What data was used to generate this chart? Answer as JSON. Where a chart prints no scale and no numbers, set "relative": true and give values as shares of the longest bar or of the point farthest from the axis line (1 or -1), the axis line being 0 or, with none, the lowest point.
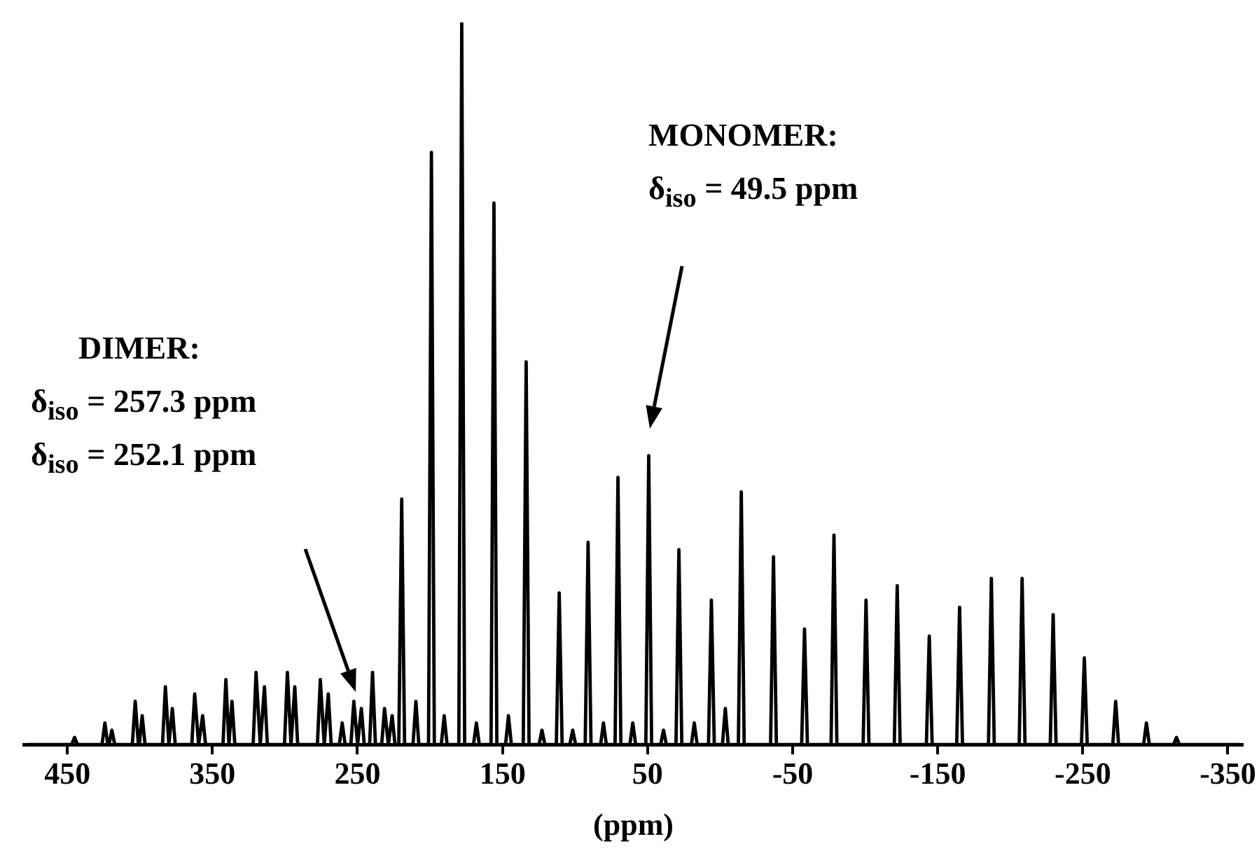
{
  "chart_data": {
    "type": "line",
    "relative": true,
    "xlabel": "(ppm)",
    "xlim": [
      480,
      -360
    ],
    "xticks": [
      450,
      350,
      250,
      150,
      50,
      -50,
      -150,
      -250,
      -350
    ],
    "grid": false,
    "legend": false,
    "marker": "none",
    "line_style": "solid",
    "tick_labels": "x",
    "annotations": [
      "MONOMER:",
      "δ$_{iso}$ = 49.5 ppm",
      "DIMER:",
      "δ$_{iso}$ = 257.3 ppm",
      "δ$_{iso}$ = 252.1 ppm"
    ],
    "series": [
      {
        "color": "#000000",
        "x": [
          478,
          447,
          445,
          443,
          426.1,
          424.1,
          422.1,
          421.3,
          419.3,
          417.3,
          405.2,
          403.2,
          401,
          400.4,
          398.4,
          396.4,
          384.4,
          382.4,
          380,
          379.6,
          377.6,
          375.6,
          364.2,
          362.2,
          359.5,
          356.7,
          354.7,
          342.7,
          340.7,
          338.6,
          336.5,
          334.5,
          321.9,
          319.9,
          317,
          314.1,
          312.1,
          300.3,
          298.3,
          295.8,
          293.2,
          291.2,
          277.6,
          275.6,
          272.9,
          270.1,
          268.1,
          262.5,
          260.5,
          258.5,
          254.5,
          252.5,
          249.9,
          247.3,
          245.3,
          241.6,
          239.6,
          237.6,
          233.3,
          231.3,
          228.7,
          226.1,
          224.1,
          221.5,
          219.5,
          217.5,
          211.7,
          209.7,
          207.7,
          201,
          199,
          197,
          192.2,
          190.2,
          188.2,
          180.1,
          178.1,
          176.1,
          170,
          168,
          166,
          157.9,
          155.9,
          153.9,
          147.9,
          145.9,
          143.9,
          135.7,
          133.7,
          131.7,
          124.8,
          122.8,
          120.8,
          112.9,
          110.9,
          108.9,
          103.6,
          101.6,
          99.6,
          93,
          91,
          89,
          82.4,
          80.4,
          78.4,
          72.4,
          70.4,
          68.4,
          62.2,
          60.2,
          58.2,
          51.2,
          49.2,
          47.2,
          41,
          39,
          37,
          30.4,
          28.4,
          26.4,
          19.8,
          17.8,
          15.8,
          8,
          6,
          4,
          -1.6,
          -3.6,
          -5.6,
          -12.6,
          -14.6,
          -16.6,
          -34.8,
          -36.8,
          -38.8,
          -56.2,
          -58.2,
          -60.2,
          -76.5,
          -78.5,
          -80.5,
          -98.6,
          -100.6,
          -102.6,
          -120.1,
          -122.1,
          -124.1,
          -142.2,
          -144.2,
          -146.2,
          -163.1,
          -165.1,
          -167.1,
          -185,
          -187,
          -189,
          -206.2,
          -208.2,
          -210.2,
          -227.6,
          -229.6,
          -231.6,
          -249.1,
          -251.1,
          -253.1,
          -270.7,
          -272.7,
          -274.7,
          -291.9,
          -293.9,
          -295.9,
          -312.6,
          -314.6,
          -316.6,
          -358
        ],
        "values": [
          0,
          0,
          0.01,
          0,
          0,
          0.03,
          0,
          0,
          0.02,
          0,
          0,
          0.06,
          0,
          0,
          0.04,
          0,
          0,
          0.08,
          0,
          0,
          0.05,
          0,
          0,
          0.07,
          0,
          0.04,
          0,
          0,
          0.09,
          0,
          0.06,
          0,
          0,
          0.1,
          0,
          0.08,
          0,
          0,
          0.1,
          0,
          0.08,
          0,
          0,
          0.09,
          0,
          0.07,
          0,
          0,
          0.03,
          0,
          0,
          0.06,
          0,
          0.05,
          0,
          0,
          0.1,
          0,
          0,
          0.05,
          0,
          0.04,
          0,
          0,
          0.34,
          0,
          0,
          0.06,
          0,
          0,
          0.82,
          0,
          0,
          0.04,
          0,
          0,
          1,
          0,
          0,
          0.03,
          0,
          0,
          0.75,
          0,
          0,
          0.04,
          0,
          0,
          0.53,
          0,
          0,
          0.02,
          0,
          0,
          0.21,
          0,
          0,
          0.02,
          0,
          0,
          0.28,
          0,
          0,
          0.03,
          0,
          0,
          0.37,
          0,
          0,
          0.03,
          0,
          0,
          0.4,
          0,
          0,
          0.02,
          0,
          0,
          0.27,
          0,
          0,
          0.03,
          0,
          0,
          0.2,
          0,
          0,
          0.05,
          0,
          0,
          0.35,
          0,
          0,
          0.26,
          0,
          0,
          0.16,
          0,
          0,
          0.29,
          0,
          0,
          0.2,
          0,
          0,
          0.22,
          0,
          0,
          0.15,
          0,
          0,
          0.19,
          0,
          0,
          0.23,
          0,
          0,
          0.23,
          0,
          0,
          0.18,
          0,
          0,
          0.12,
          0,
          0,
          0.06,
          0,
          0,
          0.03,
          0,
          0,
          0.01,
          0,
          0
        ]
      }
    ]
  }
}
